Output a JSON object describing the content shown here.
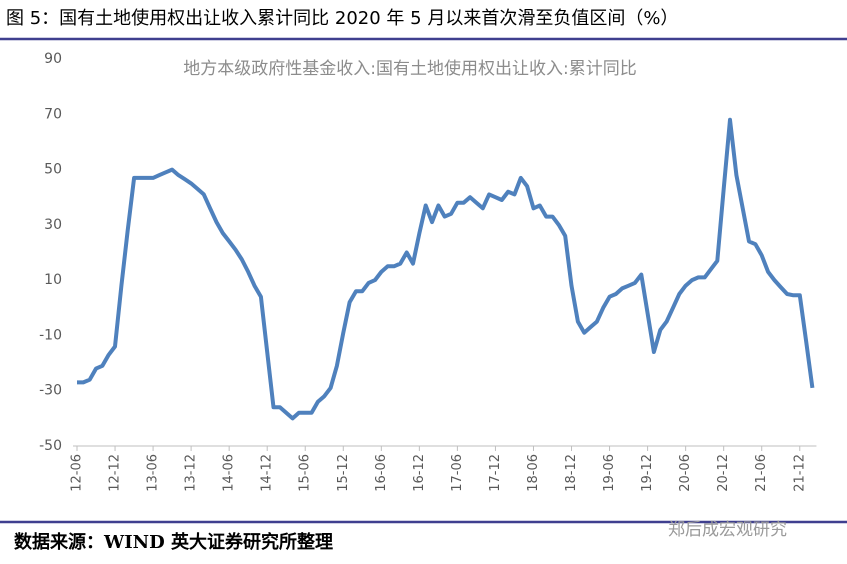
{
  "figure_title": "图 5：国有土地使用权出让收入累计同比 2020 年 5 月以来首次滑至负值区间（%）",
  "source": "数据来源：WIND  英大证券研究所整理",
  "watermark": "郑后成宏观研究",
  "chart_data": {
    "type": "line",
    "title": "地方本级政府性基金收入:国有土地使用权出让收入:累计同比",
    "categories": [
      "12-06",
      null,
      null,
      null,
      null,
      null,
      "12-12",
      null,
      null,
      null,
      null,
      null,
      "13-06",
      null,
      null,
      null,
      null,
      null,
      "13-12",
      null,
      null,
      null,
      null,
      null,
      "14-06",
      null,
      null,
      null,
      null,
      null,
      "14-12",
      null,
      null,
      null,
      null,
      null,
      "15-06",
      null,
      null,
      null,
      null,
      null,
      "15-12",
      null,
      null,
      null,
      null,
      null,
      "16-06",
      null,
      null,
      null,
      null,
      null,
      "16-12",
      null,
      null,
      null,
      null,
      null,
      "17-06",
      null,
      null,
      null,
      null,
      null,
      "17-12",
      null,
      null,
      null,
      null,
      null,
      "18-06",
      null,
      null,
      null,
      null,
      null,
      "18-12",
      null,
      null,
      null,
      null,
      null,
      "19-06",
      null,
      null,
      null,
      null,
      null,
      "19-12",
      null,
      null,
      null,
      null,
      null,
      "20-06",
      null,
      null,
      null,
      null,
      null,
      "20-12",
      null,
      null,
      null,
      null,
      null,
      "21-06",
      null,
      null,
      null,
      null,
      null,
      "21-12",
      null,
      null
    ],
    "series": [
      {
        "name": "地方本级政府性基金收入:国有土地使用权出让收入:累计同比",
        "color": "#4f81bd",
        "values": [
          -27,
          -27,
          -26,
          -22,
          -21,
          -17,
          -14,
          8,
          28,
          47,
          47,
          47,
          47,
          48,
          49,
          50,
          48,
          46.5,
          45,
          43,
          41,
          36,
          31,
          27,
          24,
          21,
          17.5,
          13,
          8,
          4,
          -16,
          -36,
          -36,
          -38,
          -40,
          -38,
          -38,
          -38,
          -34,
          -32,
          -29,
          -21,
          -9,
          2,
          6,
          6,
          9,
          10,
          13,
          15,
          15,
          16,
          20,
          16,
          27,
          37,
          31,
          37,
          33,
          34,
          38,
          38,
          40,
          38,
          36,
          41,
          40,
          39,
          42,
          41,
          47,
          44,
          36,
          37,
          33,
          33,
          30,
          26,
          8,
          -5,
          -9,
          -7,
          -5,
          0,
          4,
          5,
          7,
          8,
          9,
          12,
          -2,
          -16,
          -8,
          -5,
          0,
          5,
          8,
          10,
          11,
          11,
          14,
          17,
          43,
          68,
          48,
          36,
          24,
          23,
          19,
          13,
          10,
          7.5,
          5,
          4.5,
          4.5,
          -12,
          -29
        ]
      }
    ],
    "ylim": [
      -50,
      90
    ],
    "yticks": [
      -50,
      -30,
      -10,
      10,
      30,
      50,
      70,
      90
    ],
    "grid": false
  }
}
